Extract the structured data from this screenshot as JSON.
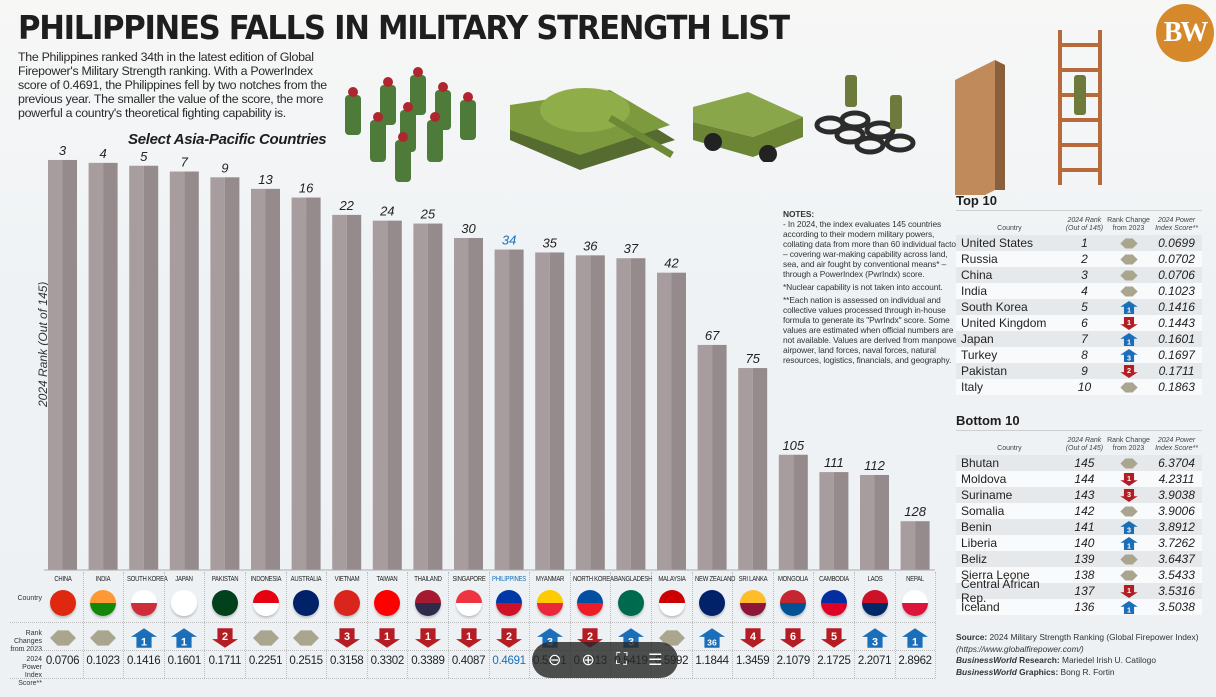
{
  "header": {
    "title": "PHILIPPINES FALLS IN MILITARY STRENGTH LIST",
    "intro": "The Philippines ranked 34th in the latest edition of  Global Firepower's Military Strength ranking. With a PowerIndex score of 0.4691, the Philippines fell by two notches from the previous year. The smaller the value of the score, the more powerful a country's theoretical fighting capability is.",
    "logo": "BW"
  },
  "colors": {
    "bar_light": "#a89d9e",
    "bar_dark": "#958a8c",
    "highlight": "#1a6fb8",
    "up": "#1a6fb8",
    "down": "#b41d23",
    "same": "#a9a58f",
    "logo": "#d6892b"
  },
  "chart_data": {
    "type": "bar",
    "title": "Select Asia-Pacific Countries",
    "xlabel": "Country",
    "ylabel": "2024 Rank (Out of 145)",
    "ylim": [
      0,
      145
    ],
    "inverted": true,
    "highlight": "PHILIPPINES",
    "categories": [
      "CHINA",
      "INDIA",
      "SOUTH KOREA",
      "JAPAN",
      "PAKISTAN",
      "INDONESIA",
      "AUSTRALIA",
      "VIETNAM",
      "TAIWAN",
      "THAILAND",
      "SINGAPORE",
      "PHILIPPINES",
      "MYANMAR",
      "NORTH KOREA",
      "BANGLADESH",
      "MALAYSIA",
      "NEW ZEALAND",
      "SRI LANKA",
      "MONGOLIA",
      "CAMBODIA",
      "LAOS",
      "NEPAL"
    ],
    "values": [
      3,
      4,
      5,
      7,
      9,
      13,
      16,
      22,
      24,
      25,
      30,
      34,
      35,
      36,
      37,
      42,
      67,
      75,
      105,
      111,
      112,
      128
    ],
    "rank_change": [
      {
        "dir": "same",
        "n": ""
      },
      {
        "dir": "same",
        "n": ""
      },
      {
        "dir": "up",
        "n": "1"
      },
      {
        "dir": "up",
        "n": "1"
      },
      {
        "dir": "down",
        "n": "2"
      },
      {
        "dir": "same",
        "n": ""
      },
      {
        "dir": "same",
        "n": ""
      },
      {
        "dir": "down",
        "n": "3"
      },
      {
        "dir": "down",
        "n": "1"
      },
      {
        "dir": "down",
        "n": "1"
      },
      {
        "dir": "down",
        "n": "1"
      },
      {
        "dir": "down",
        "n": "2"
      },
      {
        "dir": "up",
        "n": "3"
      },
      {
        "dir": "down",
        "n": "2"
      },
      {
        "dir": "up",
        "n": "3"
      },
      {
        "dir": "same",
        "n": ""
      },
      {
        "dir": "up",
        "n": "36"
      },
      {
        "dir": "down",
        "n": "4"
      },
      {
        "dir": "down",
        "n": "6"
      },
      {
        "dir": "down",
        "n": "5"
      },
      {
        "dir": "up",
        "n": "3"
      },
      {
        "dir": "up",
        "n": "1"
      }
    ],
    "power_index": [
      "0.0706",
      "0.1023",
      "0.1416",
      "0.1601",
      "0.1711",
      "0.2251",
      "0.2515",
      "0.3158",
      "0.3302",
      "0.3389",
      "0.4087",
      "0.4691",
      "0.5251",
      "0.5913",
      "0.5419",
      "0.5992",
      "1.1844",
      "1.3459",
      "2.1079",
      "2.1725",
      "2.2071",
      "2.8962"
    ]
  },
  "row_labels": {
    "country": "Country",
    "rank_changes": "Rank Changes from 2023",
    "power_score": "2024 Power Index Score**"
  },
  "notes": {
    "heading": "NOTES:",
    "p1": "- In 2024, the index evaluates 145 countries according to their modern military powers, collating data from more than 60 individual factors – covering war-making capability across land, sea, and air fought by conventional means* – through a PowerIndex (PwrIndx) score.",
    "p2": "*Nuclear capability is not taken into account.",
    "p3": "**Each nation is assessed on individual and collective values processed through in-house formula to generate its \"PwrIndx\" score. Some values are estimated when official numbers are not available. Values are derived from manpower, airpower, land forces, naval forces, natural resources, logistics, financials, and geography."
  },
  "table_headers": {
    "country": "Country",
    "rank": "2024 Rank (Out of 145)",
    "change": "Rank Change from 2023",
    "score": "2024 Power Index Score**"
  },
  "top10": {
    "title": "Top 10",
    "rows": [
      {
        "country": "United States",
        "rank": "1",
        "dir": "same",
        "n": "",
        "score": "0.0699"
      },
      {
        "country": "Russia",
        "rank": "2",
        "dir": "same",
        "n": "",
        "score": "0.0702"
      },
      {
        "country": "China",
        "rank": "3",
        "dir": "same",
        "n": "",
        "score": "0.0706"
      },
      {
        "country": "India",
        "rank": "4",
        "dir": "same",
        "n": "",
        "score": "0.1023"
      },
      {
        "country": "South Korea",
        "rank": "5",
        "dir": "up",
        "n": "1",
        "score": "0.1416"
      },
      {
        "country": "United Kingdom",
        "rank": "6",
        "dir": "down",
        "n": "1",
        "score": "0.1443"
      },
      {
        "country": "Japan",
        "rank": "7",
        "dir": "up",
        "n": "1",
        "score": "0.1601"
      },
      {
        "country": "Turkey",
        "rank": "8",
        "dir": "up",
        "n": "3",
        "score": "0.1697"
      },
      {
        "country": "Pakistan",
        "rank": "9",
        "dir": "down",
        "n": "2",
        "score": "0.1711"
      },
      {
        "country": "Italy",
        "rank": "10",
        "dir": "same",
        "n": "",
        "score": "0.1863"
      }
    ]
  },
  "bottom10": {
    "title": "Bottom 10",
    "rows": [
      {
        "country": "Bhutan",
        "rank": "145",
        "dir": "same",
        "n": "",
        "score": "6.3704"
      },
      {
        "country": "Moldova",
        "rank": "144",
        "dir": "down",
        "n": "1",
        "score": "4.2311"
      },
      {
        "country": "Suriname",
        "rank": "143",
        "dir": "down",
        "n": "3",
        "score": "3.9038"
      },
      {
        "country": "Somalia",
        "rank": "142",
        "dir": "same",
        "n": "",
        "score": "3.9006"
      },
      {
        "country": "Benin",
        "rank": "141",
        "dir": "up",
        "n": "3",
        "score": "3.8912"
      },
      {
        "country": "Liberia",
        "rank": "140",
        "dir": "up",
        "n": "1",
        "score": "3.7262"
      },
      {
        "country": "Beliz",
        "rank": "139",
        "dir": "same",
        "n": "",
        "score": "3.6437"
      },
      {
        "country": "Sierra Leone",
        "rank": "138",
        "dir": "same",
        "n": "",
        "score": "3.5433"
      },
      {
        "country": "Central African Rep.",
        "rank": "137",
        "dir": "down",
        "n": "1",
        "score": "3.5316"
      },
      {
        "country": "Iceland",
        "rank": "136",
        "dir": "up",
        "n": "1",
        "score": "3.5038"
      }
    ]
  },
  "source": {
    "line1_label": "Source:",
    "line1": " 2024 Military Strength Ranking (Global Firepower Index)",
    "line2": "(https://www.globalfirepower.com/)",
    "bw": "BusinessWorld",
    "research_label": " Research:",
    "research": " Mariedel Irish U. Catilogo",
    "graphics_label": " Graphics:",
    "graphics": " Bong R. Fortin"
  },
  "overlay": {
    "icons": [
      "zoom-out-icon",
      "zoom-in-icon",
      "fullscreen-icon",
      "notes-icon"
    ],
    "glyphs": [
      "⊖",
      "⊕",
      "⛶",
      "☰"
    ]
  }
}
